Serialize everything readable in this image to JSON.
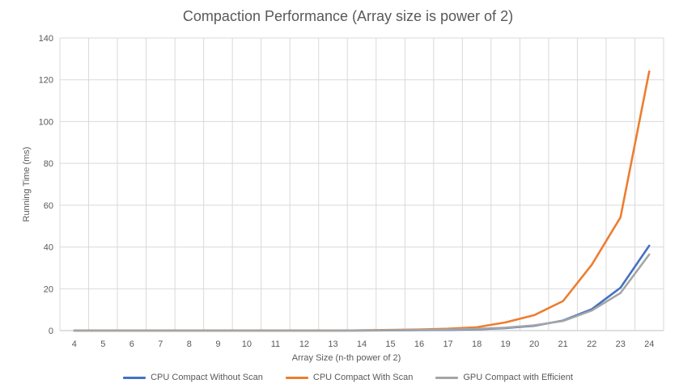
{
  "chart_data": {
    "type": "line",
    "title": "Compaction Performance (Array size is power of 2)",
    "xlabel": "Array Size (n-th power of 2)",
    "ylabel": "Running Time (ms)",
    "categories": [
      "4",
      "5",
      "6",
      "7",
      "8",
      "9",
      "10",
      "11",
      "12",
      "13",
      "14",
      "15",
      "16",
      "17",
      "18",
      "19",
      "20",
      "21",
      "22",
      "23",
      "24"
    ],
    "ylim": [
      0,
      140
    ],
    "yticks": [
      0,
      20,
      40,
      60,
      80,
      100,
      120,
      140
    ],
    "grid": true,
    "legend_position": "bottom",
    "series": [
      {
        "name": "CPU Compact Without Scan",
        "color": "#4472C4",
        "values": [
          0,
          0,
          0,
          0,
          0,
          0,
          0,
          0,
          0,
          0,
          0.05,
          0.1,
          0.2,
          0.3,
          0.6,
          1.2,
          2.3,
          4.8,
          10.2,
          20.5,
          40.6
        ]
      },
      {
        "name": "CPU Compact With Scan",
        "color": "#ED7D31",
        "values": [
          0,
          0,
          0,
          0,
          0,
          0,
          0,
          0,
          0,
          0,
          0.1,
          0.3,
          0.5,
          0.9,
          1.6,
          3.9,
          7.4,
          14.1,
          31.5,
          54.2,
          124
        ]
      },
      {
        "name": "GPU Compact with Efficient",
        "color": "#A5A5A5",
        "values": [
          0,
          0,
          0,
          0,
          0,
          0,
          0,
          0,
          0,
          0,
          0.1,
          0.2,
          0.3,
          0.5,
          0.8,
          1.4,
          2.5,
          4.6,
          9.6,
          18,
          36.4
        ]
      }
    ]
  }
}
